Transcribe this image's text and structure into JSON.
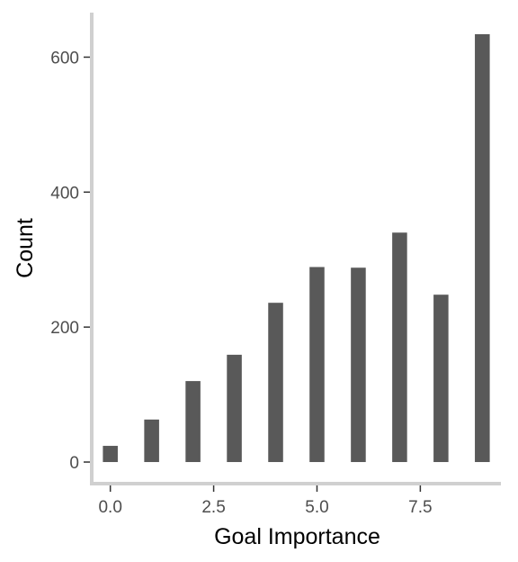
{
  "chart_data": {
    "type": "bar",
    "xlabel": "Goal Importance",
    "ylabel": "Count",
    "x": [
      0,
      1,
      2,
      3,
      4,
      5,
      6,
      7,
      8,
      9
    ],
    "values": [
      24,
      63,
      120,
      159,
      236,
      289,
      288,
      340,
      248,
      634
    ],
    "xticks": [
      0.0,
      2.5,
      5.0,
      7.5
    ],
    "xtick_labels": [
      "0.0",
      "2.5",
      "5.0",
      "7.5"
    ],
    "yticks": [
      0,
      200,
      400,
      600
    ],
    "ytick_labels": [
      "0",
      "200",
      "400",
      "600"
    ],
    "xlim": [
      -0.45,
      9.45
    ],
    "ylim": [
      -32,
      666
    ],
    "bar_width": 0.36,
    "grid": false,
    "colors": {
      "bar": "#595959",
      "axis": "#d0d0d0"
    }
  }
}
